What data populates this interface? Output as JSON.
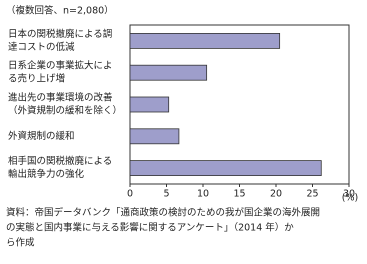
{
  "chart_data": {
    "type": "hbar",
    "subtitle": "（複数回答、n=2,080）",
    "categories": [
      [
        "日本の関税撤廃による調",
        "達コストの低減"
      ],
      [
        "日系企業の事業拡大によ",
        "る売り上げ増"
      ],
      [
        "進出先の事業環境の改善",
        "（外資規制の緩和を除く）"
      ],
      [
        "外資規制の緩和"
      ],
      [
        "相手国の関税撤廃による",
        "輸出競争力の強化"
      ]
    ],
    "values": [
      20.5,
      10.5,
      5.3,
      6.7,
      26.2
    ],
    "color": "#9e9ecb",
    "xlim": [
      0,
      30
    ],
    "xticks": [
      0,
      5,
      10,
      15,
      20,
      25,
      30
    ],
    "x_unit": "(%)",
    "grid": false,
    "source": [
      "資料：帝国データバンク「通商政策の検討のための我が国企業の海外展開",
      "の実態と国内事業に与える影響に関するアンケート」（2014 年）か",
      "ら作成"
    ]
  }
}
